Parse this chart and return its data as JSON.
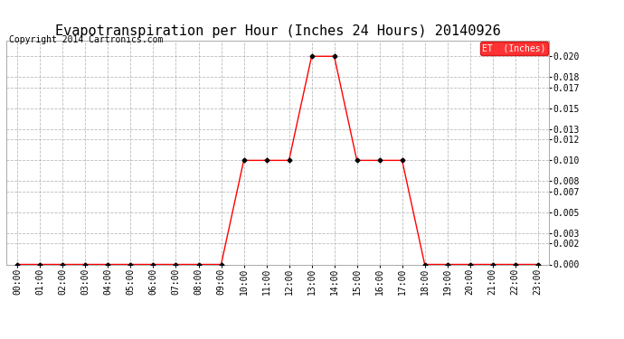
{
  "title": "Evapotranspiration per Hour (Inches 24 Hours) 20140926",
  "copyright": "Copyright 2014 Cartronics.com",
  "legend_label": "ET  (Inches)",
  "legend_bg": "#ff0000",
  "legend_text_color": "#ffffff",
  "x_labels": [
    "00:00",
    "01:00",
    "02:00",
    "03:00",
    "04:00",
    "05:00",
    "06:00",
    "07:00",
    "08:00",
    "09:00",
    "10:00",
    "11:00",
    "12:00",
    "13:00",
    "14:00",
    "15:00",
    "16:00",
    "17:00",
    "18:00",
    "19:00",
    "20:00",
    "21:00",
    "22:00",
    "23:00"
  ],
  "x_values": [
    0,
    1,
    2,
    3,
    4,
    5,
    6,
    7,
    8,
    9,
    10,
    11,
    12,
    13,
    14,
    15,
    16,
    17,
    18,
    19,
    20,
    21,
    22,
    23
  ],
  "y_values": [
    0,
    0,
    0,
    0,
    0,
    0,
    0,
    0,
    0,
    0,
    0.01,
    0.01,
    0.01,
    0.02,
    0.02,
    0.01,
    0.01,
    0.01,
    0,
    0,
    0,
    0,
    0,
    0
  ],
  "y_ticks": [
    0.0,
    0.002,
    0.003,
    0.005,
    0.007,
    0.008,
    0.01,
    0.012,
    0.013,
    0.015,
    0.017,
    0.018,
    0.02
  ],
  "ylim": [
    0.0,
    0.0215
  ],
  "xlim": [
    -0.5,
    23.5
  ],
  "line_color": "#ff0000",
  "marker": "D",
  "marker_size": 2.5,
  "marker_color": "#000000",
  "grid_color": "#bbbbbb",
  "bg_color": "#ffffff",
  "title_fontsize": 11,
  "copyright_fontsize": 7,
  "tick_fontsize": 7,
  "ytick_fontsize": 7,
  "font_family": "monospace"
}
